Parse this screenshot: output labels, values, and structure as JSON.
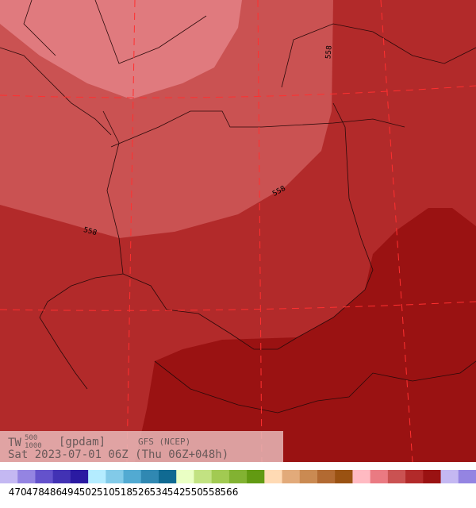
{
  "map": {
    "contour_labels": [
      "558",
      "558",
      "558"
    ],
    "info": {
      "field": "TW",
      "upper_level": "500",
      "lower_level": "1000",
      "unit": "[gpdam]",
      "model": "GFS (NCEP)",
      "valid_time": "Sat 2023-07-01 06Z (Thu 06Z+048h)"
    }
  },
  "colorbar": {
    "colors": [
      "#c4b8f2",
      "#9484e2",
      "#6452cc",
      "#4232b4",
      "#2a1aa2",
      "#b4ecff",
      "#82cae8",
      "#52aad2",
      "#3088b2",
      "#106a92",
      "#eaffc4",
      "#c2e282",
      "#a2ca52",
      "#82b232",
      "#629a12",
      "#ffdab4",
      "#e2aa7a",
      "#ca8a52",
      "#b26a32",
      "#9a5212",
      "#ffbac2",
      "#ea7a82",
      "#ca5252",
      "#b22a2a",
      "#9a1212",
      "#c4b8f2",
      "#9484e2"
    ],
    "labels": [
      470,
      478,
      486,
      494,
      502,
      510,
      518,
      526,
      534,
      542,
      550,
      558,
      566
    ]
  }
}
